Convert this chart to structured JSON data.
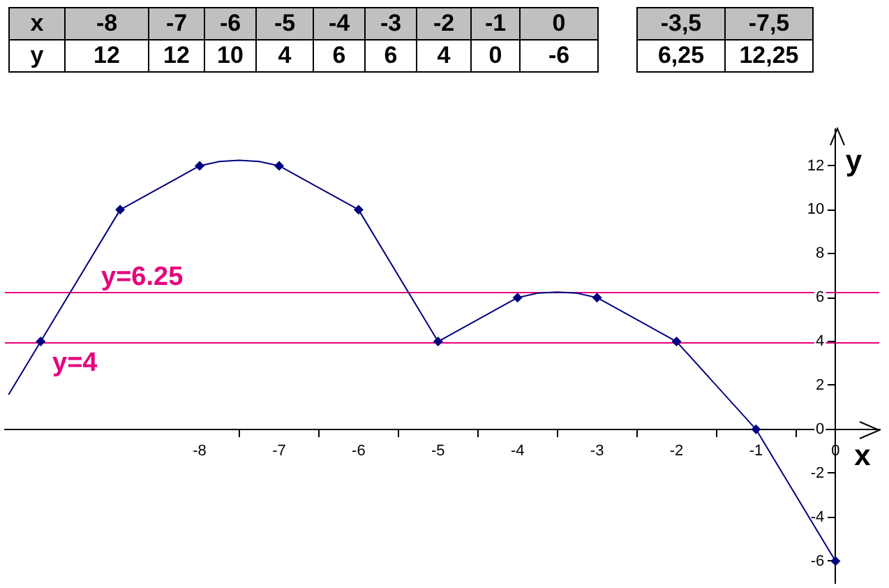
{
  "chart_data": [
    {
      "type": "heatmap",
      "xlabel": "x",
      "categories": [
        "-8",
        "-7",
        "-6",
        "-5",
        "-4",
        "-3",
        "-2",
        "-1",
        "0"
      ],
      "y_categories": [
        "y"
      ],
      "cells": [
        [
          12,
          12,
          10,
          4,
          6,
          6,
          4,
          0,
          -6
        ]
      ],
      "data_labels": true
    },
    {
      "type": "heatmap",
      "categories": [
        "-3,5",
        "-7,5"
      ],
      "y_categories": [
        null
      ],
      "cells": [
        [
          6.25,
          12.25
        ]
      ],
      "cell_labels": [
        [
          "6,25",
          "12,25"
        ]
      ]
    },
    {
      "type": "line",
      "xlabel": "x",
      "ylabel": "y",
      "xlim": [
        -10.45,
        0.55
      ],
      "ylim": [
        -7,
        13.7
      ],
      "xticks": [
        -8,
        {
          "value": -7.5,
          "label": null
        },
        -7,
        {
          "value": -6.5,
          "label": null
        },
        -6,
        {
          "value": -5.5,
          "label": null
        },
        -5,
        {
          "value": -4.5,
          "label": null
        },
        -4,
        {
          "value": -3.5,
          "label": null
        },
        -3,
        {
          "value": -2.5,
          "label": null
        },
        -2,
        {
          "value": -1.5,
          "label": null
        },
        -1,
        {
          "value": -0.5,
          "label": null
        },
        0
      ],
      "yticks": [
        -6,
        -4,
        -2,
        0,
        2,
        4,
        6,
        8,
        10,
        12
      ],
      "ref_lines": [
        {
          "axis": "y",
          "value": 6.25,
          "label": "y=6.25",
          "color": "#e6007e"
        },
        {
          "axis": "y",
          "value": 4,
          "label": "y=4",
          "color": "#e6007e"
        }
      ],
      "series": [
        {
          "type": "line",
          "color": "#000080",
          "marker": "none",
          "x": [
            -10.4,
            -10,
            -9,
            -8,
            -7.75,
            -7.5,
            -7.25,
            -7,
            -6,
            -5,
            -4,
            -3.75,
            -3.5,
            -3.25,
            -3,
            -2,
            -1,
            0
          ],
          "values": [
            1.6,
            4,
            10,
            12,
            12.2,
            12.25,
            12.2,
            12,
            10,
            4,
            6,
            6.2,
            6.25,
            6.2,
            6,
            4,
            0,
            -6
          ]
        },
        {
          "type": "scatter",
          "color": "#000080",
          "marker": "diamond",
          "x": [
            -10,
            -9,
            -8,
            -7,
            -6,
            -5,
            -4,
            -3,
            -2,
            -1,
            0
          ],
          "values": [
            4,
            10,
            12,
            12,
            10,
            4,
            6,
            6,
            4,
            0,
            -6
          ]
        }
      ]
    }
  ]
}
